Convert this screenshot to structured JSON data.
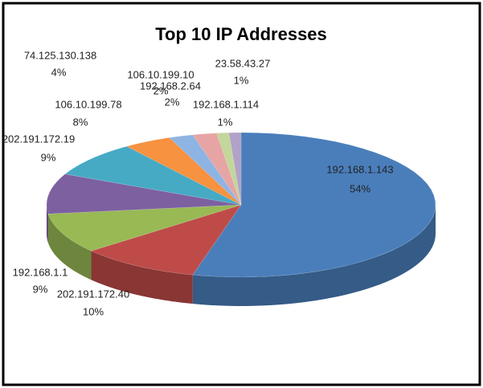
{
  "chart_data": {
    "type": "pie3d",
    "title": "Top 10 IP Addresses",
    "categories": [
      "192.168.1.143",
      "202.191.172.40",
      "192.168.1.1",
      "202.191.172.19",
      "106.10.199.78",
      "74.125.130.138",
      "106.10.199.10",
      "192.168.2.64",
      "192.168.1.114",
      "23.58.43.27"
    ],
    "values": [
      54,
      10,
      9,
      9,
      8,
      4,
      2,
      2,
      1,
      1
    ],
    "value_labels": [
      "54%",
      "10%",
      "9%",
      "9%",
      "8%",
      "4%",
      "2%",
      "2%",
      "1%",
      "1%"
    ],
    "colors": [
      "#4a7ebb",
      "#be4b48",
      "#98b954",
      "#7d60a0",
      "#46aac5",
      "#f69240",
      "#8eb4e3",
      "#e6a5a4",
      "#c3d69b",
      "#b3a2c7"
    ]
  }
}
